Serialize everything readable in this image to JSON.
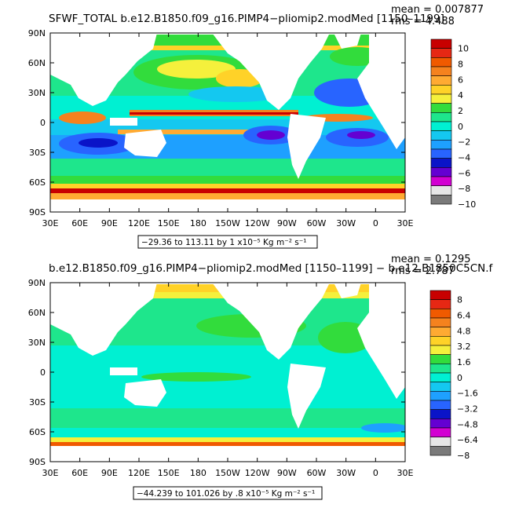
{
  "colors": {
    "land": "#ffffff",
    "frame": "#000000",
    "background": "#ffffff"
  },
  "chart_data": [
    {
      "type": "heatmap",
      "title": "SFWF_TOTAL  b.e12.B1850.f09_g16.PIMP4−pliomip2.modMed  [1150–1199]",
      "stat_mean": "mean = 0.007877",
      "stat_rms": "rms = 4.488",
      "caption": "−29.36 to 113.11 by 1 x10⁻⁵ Kg m⁻² s⁻¹",
      "x_ticks": [
        "30E",
        "60E",
        "90E",
        "120E",
        "150E",
        "180",
        "150W",
        "120W",
        "90W",
        "60W",
        "30W",
        "0",
        "30E"
      ],
      "y_ticks": [
        "90N",
        "60N",
        "30N",
        "0",
        "30S",
        "60S",
        "90S"
      ],
      "colorbar": {
        "labels": [
          "10",
          "8",
          "6",
          "4",
          "2",
          "0",
          "−2",
          "−4",
          "−6",
          "−8",
          "−10"
        ],
        "colors": [
          "#c80000",
          "#e62814",
          "#f05a00",
          "#f5821e",
          "#ffaa32",
          "#ffd228",
          "#f5f03c",
          "#32dc3c",
          "#1ee68c",
          "#00f0d2",
          "#14c8f0",
          "#1ea0ff",
          "#2864ff",
          "#0a14c8",
          "#6400d2",
          "#d200d2",
          "#e6e6e6",
          "#7a7a7a"
        ]
      },
      "sample_values": {
        "pacific_itcz": 8,
        "subtropical_pacific": -6,
        "high_latitude_south": 8,
        "north_atlantic_subtropics": -6,
        "indian_ocean_south": -6,
        "arctic": 2
      }
    },
    {
      "type": "heatmap",
      "title": "b.e12.B1850.f09_g16.PIMP4−pliomip2.modMed  [1150–1199]  −  b.e12.B1850C5CN.f",
      "stat_mean": "mean = 0.1295",
      "stat_rms": "rms = 2.787",
      "caption": "−44.239 to 101.026 by .8 x10⁻⁵ Kg m⁻² s⁻¹",
      "x_ticks": [
        "30E",
        "60E",
        "90E",
        "120E",
        "150E",
        "180",
        "150W",
        "120W",
        "90W",
        "60W",
        "30W",
        "0",
        "30E"
      ],
      "y_ticks": [
        "90N",
        "60N",
        "30N",
        "0",
        "30S",
        "60S",
        "90S"
      ],
      "colorbar": {
        "labels": [
          "8",
          "6.4",
          "4.8",
          "3.2",
          "1.6",
          "0",
          "−1.6",
          "−3.2",
          "−4.8",
          "−6.4",
          "−8"
        ],
        "colors": [
          "#c80000",
          "#e62814",
          "#f05a00",
          "#f5821e",
          "#ffaa32",
          "#ffd228",
          "#f5f03c",
          "#32dc3c",
          "#1ee68c",
          "#00f0d2",
          "#14c8f0",
          "#1ea0ff",
          "#2864ff",
          "#0a14c8",
          "#6400d2",
          "#d200d2",
          "#e6e6e6",
          "#7a7a7a"
        ]
      },
      "sample_values": {
        "southern_ocean": 0,
        "equatorial_pacific": 0.5,
        "arctic": 3.2,
        "north_pacific": 1.6
      }
    }
  ]
}
